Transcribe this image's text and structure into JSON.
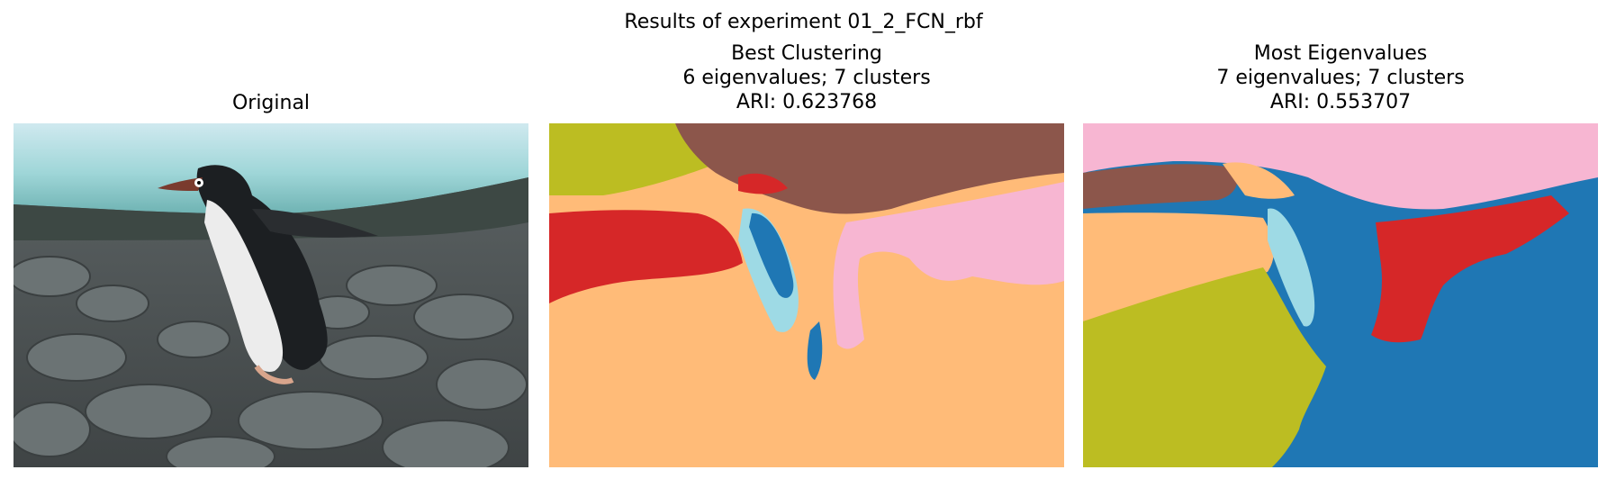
{
  "figure": {
    "suptitle": "Results of experiment 01_2_FCN_rbf",
    "panels": [
      {
        "title_lines": [
          "Original"
        ]
      },
      {
        "title_lines": [
          "Best Clustering",
          "6 eigenvalues; 7 clusters",
          "ARI: 0.623768"
        ]
      },
      {
        "title_lines": [
          "Most Eigenvalues",
          "7 eigenvalues; 7 clusters",
          "ARI: 0.553707"
        ]
      }
    ],
    "cluster_colors": {
      "blue": "#1f77b4",
      "cyan": "#9edae5",
      "red": "#d62728",
      "olive": "#bcbd22",
      "brown": "#8c564b",
      "pink": "#f7b6d2",
      "peach": "#ffbb78"
    }
  }
}
